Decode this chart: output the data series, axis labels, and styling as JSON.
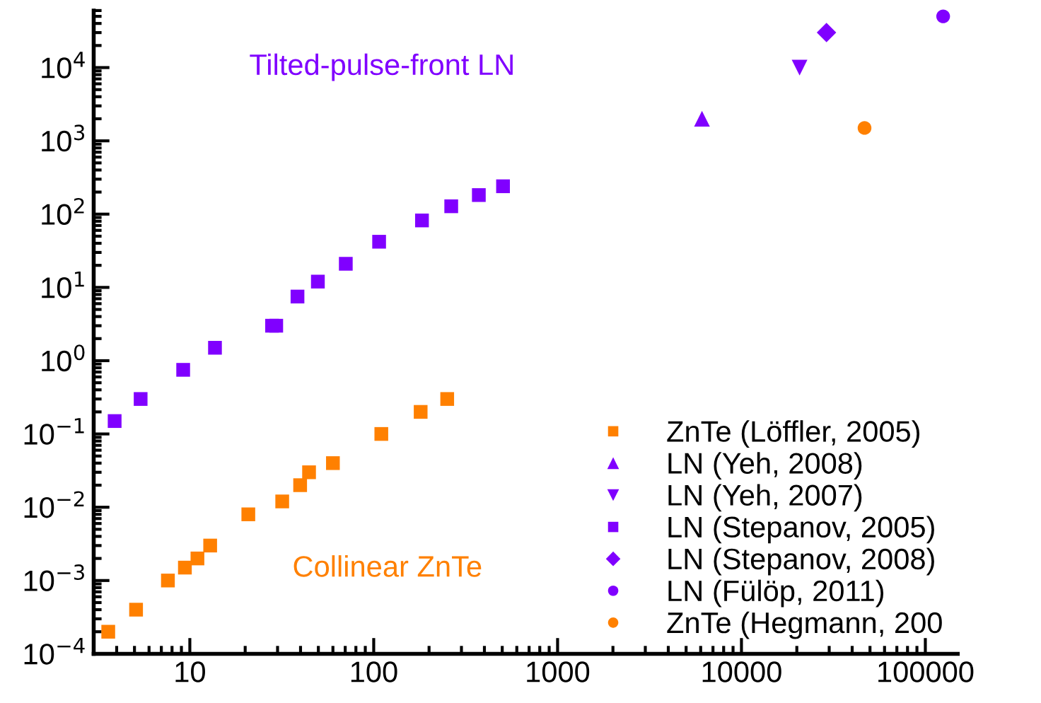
{
  "chart_data": {
    "type": "scatter",
    "annotations": [
      "Tilted-pulse-front LN",
      "Collinear ZnTe"
    ],
    "log": "xy",
    "xlim": [
      3,
      150000
    ],
    "xticks": [
      10,
      100,
      1000,
      10000,
      100000
    ],
    "ylim": [
      0.0001,
      60000
    ],
    "yticks": [
      {
        "value": 0.0001,
        "label": "10$^{−4}$"
      },
      {
        "value": 0.001,
        "label": "10$^{−3}$"
      },
      {
        "value": 0.01,
        "label": "10$^{−2}$"
      },
      {
        "value": 0.1,
        "label": "10$^{−1}$"
      },
      {
        "value": 1,
        "label": "10$^{0}$"
      },
      {
        "value": 10,
        "label": "10$^{1}$"
      },
      {
        "value": 100,
        "label": "10$^{2}$"
      },
      {
        "value": 1000,
        "label": "10$^{3}$"
      },
      {
        "value": 10000,
        "label": "10$^{4}$"
      }
    ],
    "grid": false,
    "legend": "bottom right",
    "series": [
      {
        "name": "ZnTe (Löffler, 2005)",
        "color": "#ff8000",
        "marker": "square",
        "x": [
          3.6,
          5.1,
          7.6,
          9.4,
          11,
          12.9,
          20.8,
          31.8,
          39.8,
          44.5,
          60,
          110,
          180,
          251
        ],
        "values": [
          0.0002,
          0.0004,
          0.001,
          0.0015,
          0.002,
          0.003,
          0.008,
          0.012,
          0.02,
          0.03,
          0.04,
          0.1,
          0.2,
          0.3
        ]
      },
      {
        "name": "LN (Yeh, 2008)",
        "color": "#8000ff",
        "marker": "triangle",
        "x": [
          6100
        ],
        "values": [
          2000
        ]
      },
      {
        "name": "LN (Yeh, 2007)",
        "color": "#8000ff",
        "marker": "triangle_down",
        "x": [
          20700
        ],
        "values": [
          10000
        ]
      },
      {
        "name": "LN (Stepanov, 2005)",
        "color": "#8000ff",
        "marker": "square",
        "x": [
          3.9,
          5.4,
          9.2,
          13.7,
          28,
          29.5,
          38.5,
          49.7,
          70.5,
          107,
          183,
          264,
          373,
          505
        ],
        "values": [
          0.15,
          0.3,
          0.75,
          1.5,
          3,
          3,
          7.5,
          12,
          21,
          42,
          82,
          128,
          182,
          240
        ]
      },
      {
        "name": "LN (Stepanov, 2008)",
        "color": "#8000ff",
        "marker": "diamond",
        "x": [
          29000
        ],
        "values": [
          30000
        ]
      },
      {
        "name": "LN (Fülöp, 2011)",
        "color": "#8000ff",
        "marker": "circle",
        "x": [
          125000
        ],
        "values": [
          50000
        ]
      },
      {
        "name": "ZnTe (Hegmann, 200",
        "color": "#ff8000",
        "marker": "circle",
        "x": [
          46700
        ],
        "values": [
          1500
        ]
      }
    ]
  }
}
